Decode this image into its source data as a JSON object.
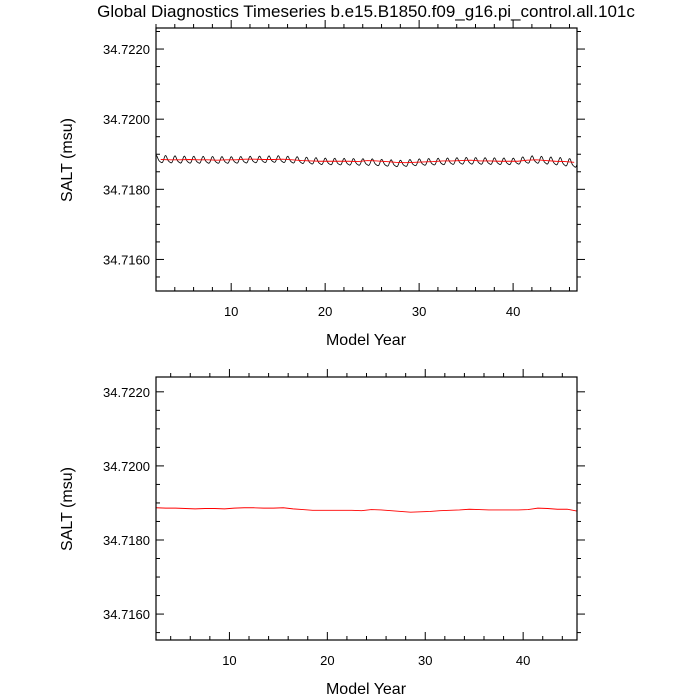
{
  "figure": {
    "title": "Global Diagnostics Timeseries b.e15.B1850.f09_g16.pi_control.all.101c"
  },
  "colors": {
    "monthly_series": "#000000",
    "annual_series": "#ff0000",
    "frame": "#000000",
    "background": "#ffffff"
  },
  "chart_data": [
    {
      "type": "line",
      "title": "",
      "xlabel": "Model Year",
      "ylabel": "SALT (msu)",
      "xlim": [
        2,
        46.8
      ],
      "ylim": [
        34.7151,
        34.7226
      ],
      "x_ticks": [
        10,
        20,
        30,
        40
      ],
      "x_tick_labels": [
        "10",
        "20",
        "30",
        "40"
      ],
      "y_ticks": [
        34.716,
        34.718,
        34.72,
        34.722
      ],
      "y_tick_labels": [
        "34.7160",
        "34.7180",
        "34.7200",
        "34.7220"
      ],
      "grid": false,
      "legend": "none",
      "series": [
        {
          "color": "#000000",
          "style": "monthly",
          "x_start": 2.04,
          "x_step": 0.0833333,
          "baseline": [
            [
              2,
              34.71885
            ],
            [
              5,
              34.71883
            ],
            [
              10,
              34.71882
            ],
            [
              15,
              34.71885
            ],
            [
              20,
              34.71878
            ],
            [
              25,
              34.71876
            ],
            [
              28,
              34.71872
            ],
            [
              30,
              34.71876
            ],
            [
              35,
              34.7188
            ],
            [
              40,
              34.71878
            ],
            [
              42,
              34.71884
            ],
            [
              45,
              34.71878
            ],
            [
              46.8,
              34.71872
            ]
          ],
          "seasonal_amplitude": [
            [
              2,
              0.0001
            ],
            [
              10,
              9e-05
            ],
            [
              20,
              9e-05
            ],
            [
              30,
              9e-05
            ],
            [
              40,
              9e-05
            ],
            [
              46.8,
              0.00011
            ]
          ]
        },
        {
          "color": "#ff0000",
          "style": "annual",
          "x": [
            2.5,
            3.5,
            4.5,
            5.5,
            6.5,
            7.5,
            8.5,
            9.5,
            10.5,
            11.5,
            12.5,
            13.5,
            14.5,
            15.5,
            16.5,
            17.5,
            18.5,
            19.5,
            20.5,
            21.5,
            22.5,
            23.5,
            24.5,
            25.5,
            26.5,
            27.5,
            28.5,
            29.5,
            30.5,
            31.5,
            32.5,
            33.5,
            34.5,
            35.5,
            36.5,
            37.5,
            38.5,
            39.5,
            40.5,
            41.5,
            42.5,
            43.5,
            44.5,
            45.5,
            46.5
          ],
          "y": [
            34.71885,
            34.71884,
            34.71884,
            34.71885,
            34.71884,
            34.71884,
            34.71883,
            34.71884,
            34.71884,
            34.71886,
            34.71886,
            34.71885,
            34.71885,
            34.71886,
            34.71884,
            34.71882,
            34.71881,
            34.7188,
            34.7188,
            34.7188,
            34.7188,
            34.71879,
            34.71882,
            34.71881,
            34.71879,
            34.71877,
            34.71876,
            34.71877,
            34.71878,
            34.71879,
            34.71881,
            34.71881,
            34.71882,
            34.71883,
            34.71881,
            34.71881,
            34.7188,
            34.7188,
            34.7188,
            34.71883,
            34.71884,
            34.71882,
            34.7188,
            34.71879,
            34.71877
          ]
        }
      ]
    },
    {
      "type": "line",
      "title": "",
      "xlabel": "Model Year",
      "ylabel": "SALT (msu)",
      "xlim": [
        2.5,
        45.5
      ],
      "ylim": [
        34.7153,
        34.7224
      ],
      "x_ticks": [
        10,
        20,
        30,
        40
      ],
      "x_tick_labels": [
        "10",
        "20",
        "30",
        "40"
      ],
      "y_ticks": [
        34.716,
        34.718,
        34.72,
        34.722
      ],
      "y_tick_labels": [
        "34.7160",
        "34.7180",
        "34.7200",
        "34.7220"
      ],
      "grid": false,
      "legend": "none",
      "series": [
        {
          "color": "#ff0000",
          "style": "annual",
          "x": [
            2.5,
            3.5,
            4.5,
            5.5,
            6.5,
            7.5,
            8.5,
            9.5,
            10.5,
            11.5,
            12.5,
            13.5,
            14.5,
            15.5,
            16.5,
            17.5,
            18.5,
            19.5,
            20.5,
            21.5,
            22.5,
            23.5,
            24.5,
            25.5,
            26.5,
            27.5,
            28.5,
            29.5,
            30.5,
            31.5,
            32.5,
            33.5,
            34.5,
            35.5,
            36.5,
            37.5,
            38.5,
            39.5,
            40.5,
            41.5,
            42.5,
            43.5,
            44.5,
            45.5
          ],
          "y": [
            34.71887,
            34.71886,
            34.71886,
            34.71885,
            34.71884,
            34.71885,
            34.71885,
            34.71884,
            34.71886,
            34.71887,
            34.71887,
            34.71886,
            34.71886,
            34.71887,
            34.71884,
            34.71882,
            34.7188,
            34.7188,
            34.7188,
            34.7188,
            34.7188,
            34.71879,
            34.71882,
            34.71881,
            34.71879,
            34.71877,
            34.71875,
            34.71876,
            34.71877,
            34.71879,
            34.7188,
            34.71881,
            34.71883,
            34.71882,
            34.71881,
            34.71881,
            34.71881,
            34.71881,
            34.71882,
            34.71886,
            34.71885,
            34.71883,
            34.71883,
            34.71878
          ]
        }
      ]
    }
  ]
}
